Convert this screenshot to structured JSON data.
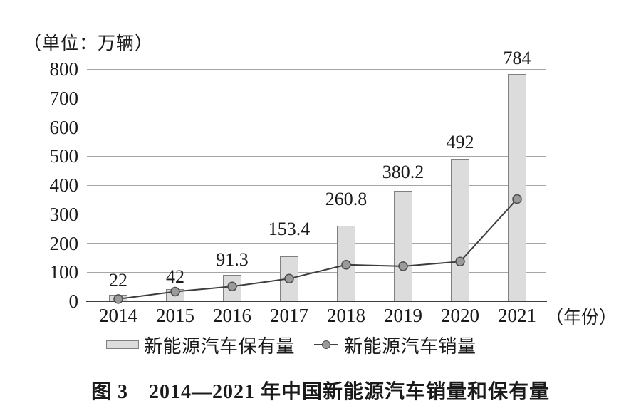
{
  "labels": {
    "unit": "（单位：万辆）",
    "year_unit": "（年份）",
    "caption": "图 3　2014—2021 年中国新能源汽车销量和保有量"
  },
  "legend": {
    "bar_label": "新能源汽车保有量",
    "line_label": "新能源汽车销量"
  },
  "colors": {
    "bar_fill": "#dcdcdc",
    "bar_border": "#808080",
    "line": "#3d3d3d",
    "point_fill": "#9a9a9a",
    "point_border": "#4d4d4d",
    "gridline": "#a6a6a6",
    "axis": "#404040",
    "text": "#1a1a1a"
  },
  "chart_data": {
    "type": "bar",
    "subtype": "bar-line-combo",
    "title": "图 3　2014—2021 年中国新能源汽车销量和保有量",
    "xlabel": "（年份）",
    "ylabel": "（单位：万辆）",
    "categories": [
      "2014",
      "2015",
      "2016",
      "2017",
      "2018",
      "2019",
      "2020",
      "2021"
    ],
    "series": [
      {
        "name": "新能源汽车保有量",
        "type": "bar",
        "values": [
          22,
          42,
          91.3,
          153.4,
          260.8,
          380.2,
          492,
          784
        ],
        "data_labels": [
          "22",
          "42",
          "91.3",
          "153.4",
          "260.8",
          "380.2",
          "492",
          "784"
        ]
      },
      {
        "name": "新能源汽车销量",
        "type": "line",
        "values": [
          7.5,
          33.1,
          50.7,
          77.7,
          125.6,
          120.6,
          136.7,
          352.1
        ],
        "values_estimated_from_plot": true
      }
    ],
    "ylim": [
      0,
      800
    ],
    "yticks": [
      0,
      100,
      200,
      300,
      400,
      500,
      600,
      700,
      800
    ],
    "grid": "horizontal",
    "legend_position": "bottom-center"
  }
}
